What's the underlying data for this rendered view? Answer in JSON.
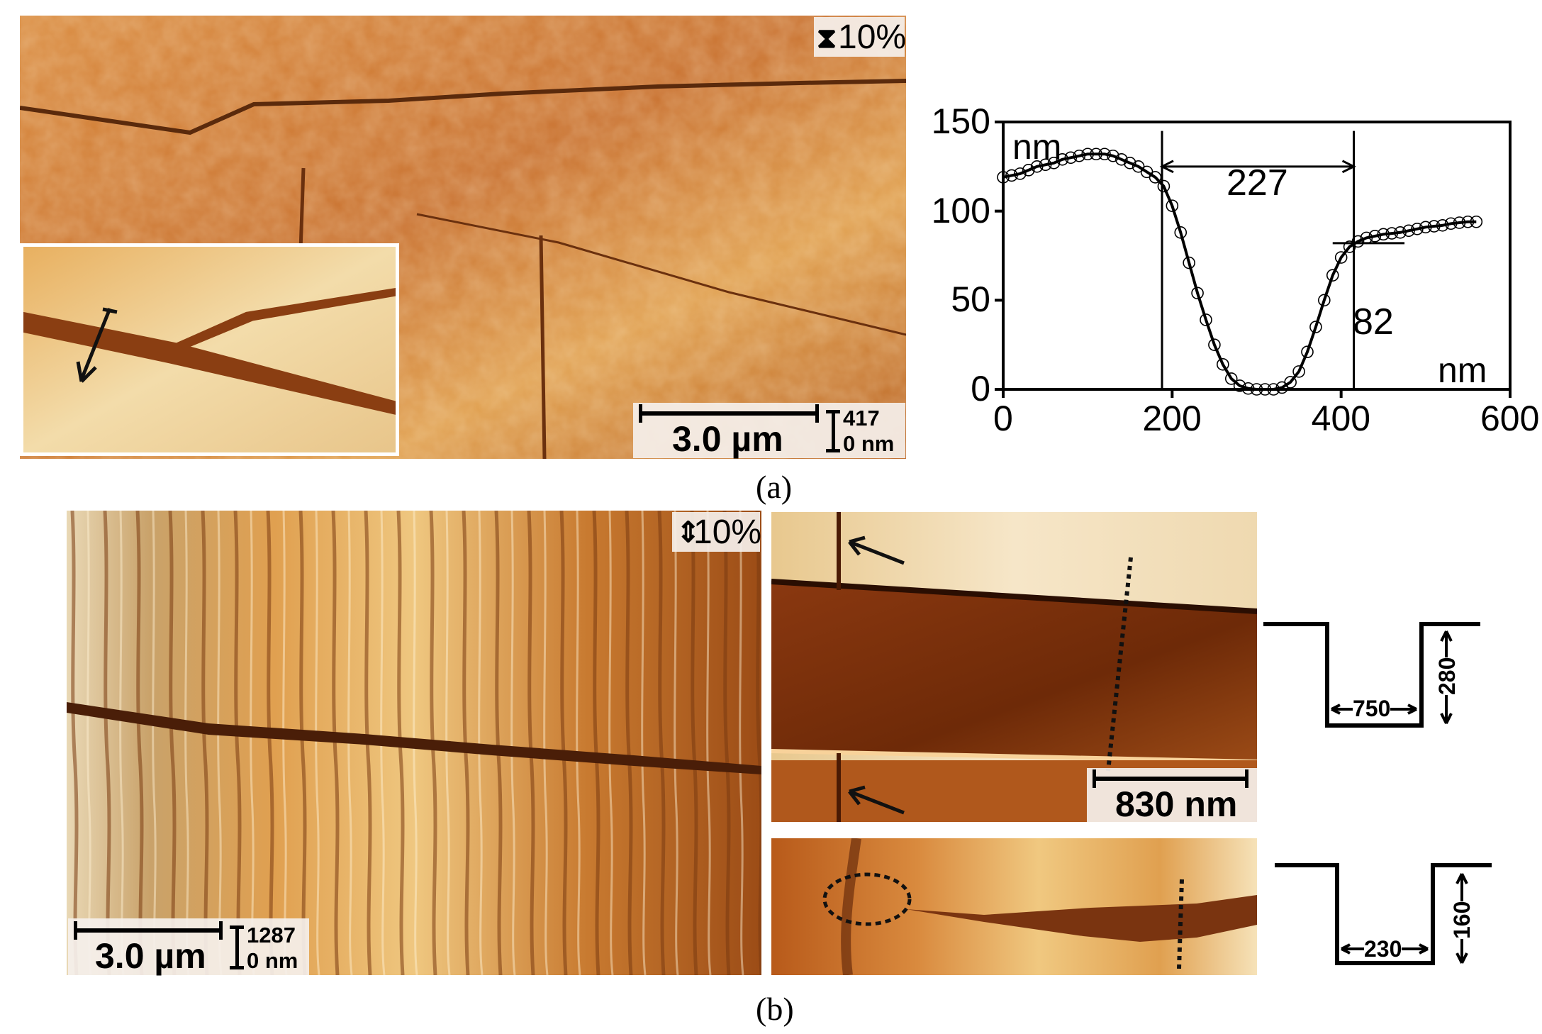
{
  "panel_a": {
    "image": {
      "height_scale": "10%",
      "scale_bar_label": "3.0 µm",
      "z_max": "417",
      "z_min": "0 nm"
    },
    "caption": "(a)"
  },
  "panel_b": {
    "image": {
      "height_scale": "10%",
      "scale_bar_label": "3.0 µm",
      "z_max": "1287",
      "z_min": "0 nm"
    },
    "zoom_top": {
      "scale_bar_label": "830 nm"
    },
    "profile_top": {
      "width": "750",
      "depth": "280"
    },
    "profile_bottom": {
      "width": "230",
      "depth": "160"
    },
    "caption": "(b)"
  },
  "chart_data": {
    "type": "scatter",
    "x_unit_label": "nm",
    "y_unit_label": "nm",
    "xlim": [
      0,
      600
    ],
    "ylim": [
      0,
      150
    ],
    "x_ticks": [
      "0",
      "200",
      "400",
      "600"
    ],
    "y_ticks": [
      "0",
      "50",
      "100",
      "150"
    ],
    "annotations": {
      "width": "227",
      "depth": "82"
    },
    "markers": {
      "left_x": 188,
      "right_x": 415,
      "rim_y": 82
    },
    "series": [
      {
        "x": [
          0,
          10,
          20,
          30,
          40,
          50,
          60,
          70,
          80,
          90,
          100,
          110,
          120,
          130,
          140,
          150,
          160,
          170,
          180,
          190,
          200,
          210,
          220,
          230,
          240,
          250,
          260,
          270,
          280,
          290,
          300,
          310,
          320,
          330,
          340,
          350,
          360,
          370,
          380,
          390,
          400,
          410,
          420,
          430,
          440,
          450,
          460,
          470,
          480,
          490,
          500,
          510,
          520,
          530,
          540,
          550,
          560
        ],
        "y": [
          119,
          120,
          121,
          123,
          125,
          126,
          127,
          129,
          130,
          131,
          132,
          132,
          132,
          131,
          129,
          127,
          125,
          122,
          119,
          114,
          103,
          88,
          71,
          54,
          39,
          25,
          14,
          6,
          2,
          0.5,
          0,
          0,
          0,
          1,
          4,
          10,
          21,
          35,
          50,
          64,
          74,
          80,
          83,
          85,
          86,
          87,
          87.5,
          88,
          89,
          90,
          91,
          91.5,
          92,
          93,
          93.5,
          94,
          94
        ]
      }
    ]
  }
}
